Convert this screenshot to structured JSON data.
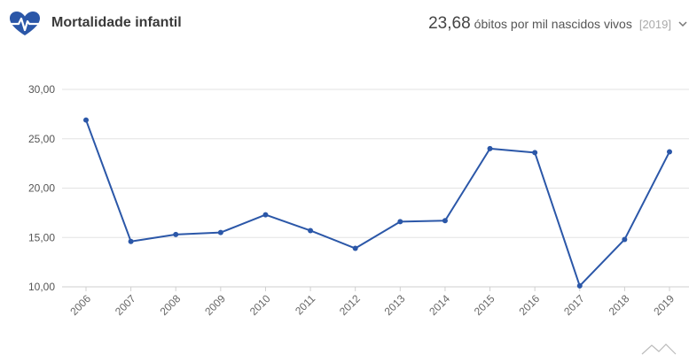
{
  "header": {
    "title": "Mortalidade infantil",
    "value": "23,68",
    "unit": "óbitos por mil nascidos vivos",
    "year": "[2019]"
  },
  "icons": {
    "logo": "heart-pulse-icon",
    "menu": "chevron-down-icon",
    "watermark": "mountain-logo-icon"
  },
  "colors": {
    "accent": "#2b57a8",
    "grid": "#e3e3e3"
  },
  "chart_data": {
    "type": "line",
    "x": [
      "2006",
      "2007",
      "2008",
      "2009",
      "2010",
      "2011",
      "2012",
      "2013",
      "2014",
      "2015",
      "2016",
      "2017",
      "2018",
      "2019"
    ],
    "series": [
      {
        "values": [
          26.9,
          14.6,
          15.3,
          15.5,
          17.3,
          15.7,
          13.9,
          16.6,
          16.7,
          24.0,
          23.6,
          10.1,
          14.8,
          23.68
        ]
      }
    ],
    "yticks": [
      "10,00",
      "15,00",
      "20,00",
      "25,00",
      "30,00"
    ],
    "ylim": [
      10,
      30
    ],
    "grid": true,
    "title": "",
    "xlabel": "",
    "ylabel": ""
  }
}
